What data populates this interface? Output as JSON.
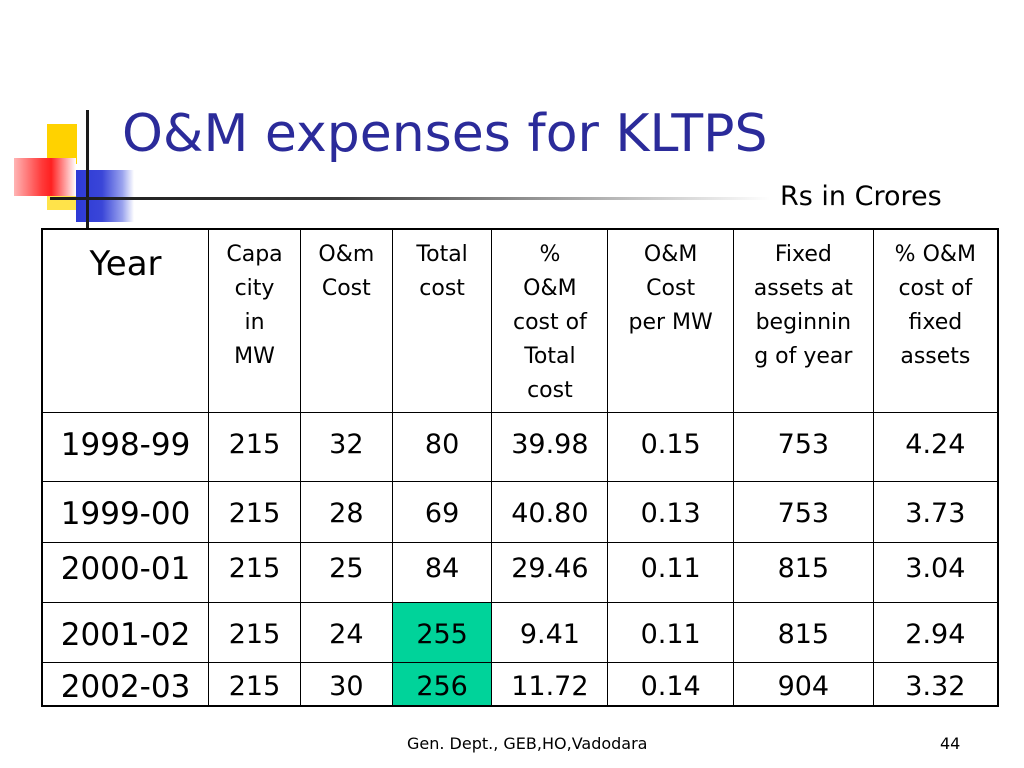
{
  "title": "O&M expenses for KLTPS",
  "units": "Rs in Crores",
  "table": {
    "headers": [
      "Year",
      "Capa city in MW",
      "O&m Cost",
      "Total cost",
      "% O&M cost of Total cost",
      "O&M Cost per MW",
      "Fixed assets at beginnin g of year",
      "% O&M cost of fixed assets"
    ],
    "header_lines": [
      [
        "Year"
      ],
      [
        "Capa",
        "city",
        "in",
        "MW"
      ],
      [
        "O&m",
        "Cost"
      ],
      [
        "Total",
        "cost"
      ],
      [
        "%",
        "O&M",
        "cost of",
        "Total",
        "cost"
      ],
      [
        "O&M",
        "Cost",
        "per MW"
      ],
      [
        "Fixed",
        "assets at",
        "beginnin",
        "g of year"
      ],
      [
        "% O&M",
        "cost of",
        "fixed",
        "assets"
      ]
    ],
    "rows": [
      [
        "1998-99",
        "215",
        "32",
        "80",
        "39.98",
        "0.15",
        "753",
        "4.24"
      ],
      [
        "1999-00",
        "215",
        "28",
        "69",
        "40.80",
        "0.13",
        "753",
        "3.73"
      ],
      [
        "2000-01",
        "215",
        "25",
        "84",
        "29.46",
        "0.11",
        "815",
        "3.04"
      ],
      [
        "2001-02",
        "215",
        "24",
        "255",
        "9.41",
        "0.11",
        "815",
        "2.94"
      ],
      [
        "2002-03",
        "215",
        "30",
        "256",
        "11.72",
        "0.14",
        "904",
        "3.32"
      ]
    ],
    "highlight_color": "#00d39a",
    "highlighted_cells": [
      "2001-02 Total cost",
      "2002-03 Total cost"
    ]
  },
  "footer": {
    "source": "Gen. Dept., GEB,HO,Vadodara",
    "page_number": "44"
  },
  "colors": {
    "title": "#2b2b9a",
    "accent_yellow": "#ffd200",
    "accent_blue": "#2d3ad6",
    "accent_red": "#ff2020"
  }
}
